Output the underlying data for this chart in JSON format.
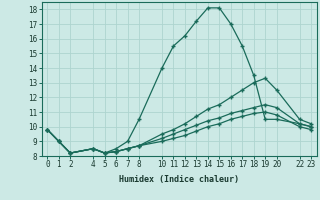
{
  "xlabel": "Humidex (Indice chaleur)",
  "bg_color": "#cce9e5",
  "grid_color": "#aed4cf",
  "line_color": "#1a6b5a",
  "series": [
    {
      "x": [
        0,
        1,
        2,
        4,
        5,
        6,
        7,
        8,
        10,
        11,
        12,
        13,
        14,
        15,
        16,
        17,
        18,
        19,
        20,
        22,
        23
      ],
      "y": [
        9.8,
        9.0,
        8.2,
        8.5,
        8.2,
        8.5,
        9.0,
        10.5,
        14.0,
        15.5,
        16.2,
        17.2,
        18.1,
        18.1,
        17.0,
        15.5,
        13.5,
        10.5,
        10.5,
        10.2,
        10.0
      ]
    },
    {
      "x": [
        0,
        1,
        2,
        4,
        5,
        6,
        7,
        8,
        10,
        11,
        12,
        13,
        14,
        15,
        16,
        17,
        18,
        19,
        20,
        22,
        23
      ],
      "y": [
        9.8,
        9.0,
        8.2,
        8.5,
        8.2,
        8.3,
        8.5,
        8.7,
        9.5,
        9.8,
        10.2,
        10.7,
        11.2,
        11.5,
        12.0,
        12.5,
        13.0,
        13.3,
        12.5,
        10.5,
        10.2
      ]
    },
    {
      "x": [
        0,
        1,
        2,
        4,
        5,
        6,
        7,
        8,
        10,
        11,
        12,
        13,
        14,
        15,
        16,
        17,
        18,
        19,
        20,
        22,
        23
      ],
      "y": [
        9.8,
        9.0,
        8.2,
        8.5,
        8.2,
        8.3,
        8.5,
        8.7,
        9.2,
        9.5,
        9.8,
        10.1,
        10.4,
        10.6,
        10.9,
        11.1,
        11.3,
        11.5,
        11.3,
        10.2,
        10.0
      ]
    },
    {
      "x": [
        0,
        1,
        2,
        4,
        5,
        6,
        7,
        8,
        10,
        11,
        12,
        13,
        14,
        15,
        16,
        17,
        18,
        19,
        20,
        22,
        23
      ],
      "y": [
        9.8,
        9.0,
        8.2,
        8.5,
        8.2,
        8.3,
        8.5,
        8.7,
        9.0,
        9.2,
        9.4,
        9.7,
        10.0,
        10.2,
        10.5,
        10.7,
        10.9,
        11.0,
        10.8,
        10.0,
        9.8
      ]
    }
  ],
  "xlim": [
    -0.5,
    23.5
  ],
  "ylim": [
    8,
    18.5
  ],
  "yticks": [
    8,
    9,
    10,
    11,
    12,
    13,
    14,
    15,
    16,
    17,
    18
  ],
  "xticks": [
    0,
    1,
    2,
    4,
    5,
    6,
    7,
    8,
    10,
    11,
    12,
    13,
    14,
    15,
    16,
    17,
    18,
    19,
    20,
    22,
    23
  ],
  "tick_fontsize": 5.5,
  "xlabel_fontsize": 6.0
}
